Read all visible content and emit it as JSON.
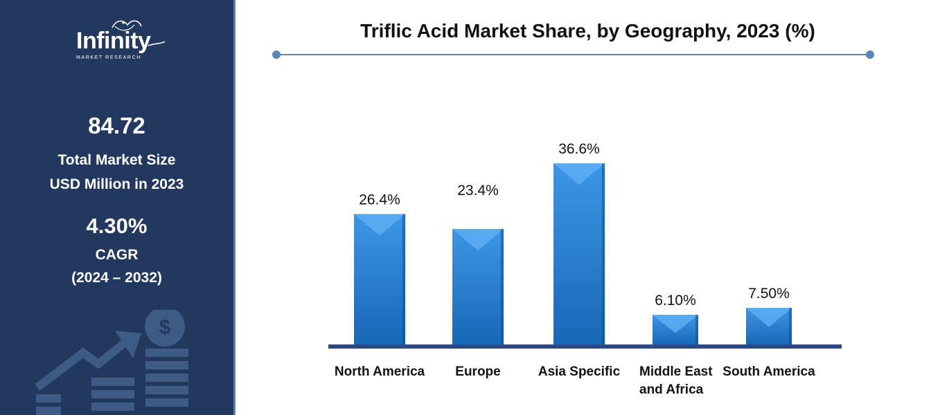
{
  "brand": {
    "name": "Infinity",
    "tagline": "MARKET RESEARCH"
  },
  "sidebar": {
    "market_size_value": "84.72",
    "market_size_label_line1": "Total Market Size",
    "market_size_label_line2": "USD Million in 2023",
    "cagr_value": "4.30%",
    "cagr_label_line1": "CAGR",
    "cagr_label_line2": "(2024 – 2032)",
    "background_color": "#22385f",
    "graphic_icons": [
      "dollar-coin-icon",
      "growth-arrow-icon",
      "stacked-bars-icon"
    ]
  },
  "chart_data": {
    "type": "bar",
    "title": "Triflic Acid Market Share, by Geography, 2023 (%)",
    "categories": [
      [
        "North America"
      ],
      [
        "Europe"
      ],
      [
        "Asia Specific"
      ],
      [
        "Middle East",
        "and Africa"
      ],
      [
        "South America"
      ]
    ],
    "values": [
      26.4,
      23.4,
      36.6,
      6.1,
      7.5
    ],
    "value_labels": [
      "26.4%",
      "23.4%",
      "36.6%",
      "6.10%",
      "7.50%"
    ],
    "ylim": [
      0,
      40
    ],
    "bar_color": "#1e73c5",
    "bar_highlight_color": "#5fb0f5",
    "baseline_color": "#2a4a86",
    "grid": false,
    "legend": "none"
  }
}
